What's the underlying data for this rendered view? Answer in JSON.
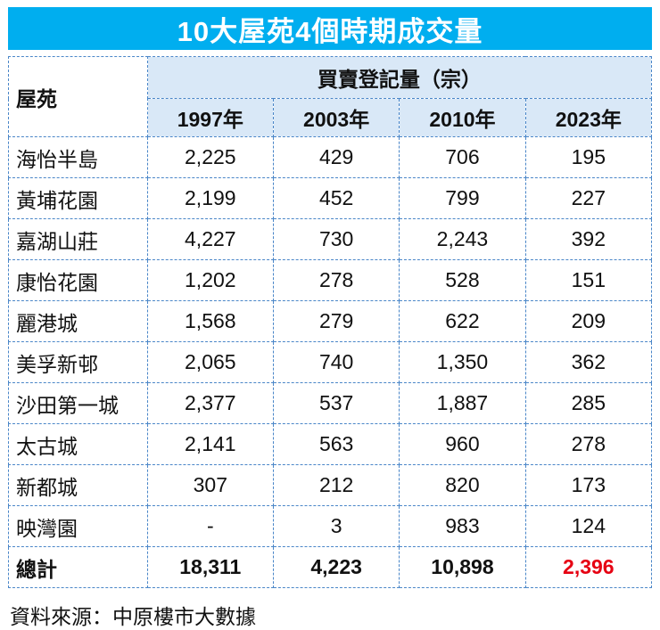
{
  "title": "10大屋苑4個時期成交量",
  "footer": "資料來源：中原樓市大數據",
  "colors": {
    "title_bg": "#00aeef",
    "header_bg": "#d9e8f7",
    "border": "#4a86c8",
    "highlight": "#e60012"
  },
  "chart_data": {
    "type": "table",
    "title": "10大屋苑4個時期成交量",
    "corner_header": "屋苑",
    "group_header": "買賣登記量（宗）",
    "year_columns": [
      "1997年",
      "2003年",
      "2010年",
      "2023年"
    ],
    "rows": [
      {
        "estate": "海怡半島",
        "values": [
          "2,225",
          "429",
          "706",
          "195"
        ]
      },
      {
        "estate": "黃埔花園",
        "values": [
          "2,199",
          "452",
          "799",
          "227"
        ]
      },
      {
        "estate": "嘉湖山莊",
        "values": [
          "4,227",
          "730",
          "2,243",
          "392"
        ]
      },
      {
        "estate": "康怡花園",
        "values": [
          "1,202",
          "278",
          "528",
          "151"
        ]
      },
      {
        "estate": "麗港城",
        "values": [
          "1,568",
          "279",
          "622",
          "209"
        ]
      },
      {
        "estate": "美孚新邨",
        "values": [
          "2,065",
          "740",
          "1,350",
          "362"
        ]
      },
      {
        "estate": "沙田第一城",
        "values": [
          "2,377",
          "537",
          "1,887",
          "285"
        ]
      },
      {
        "estate": "太古城",
        "values": [
          "2,141",
          "563",
          "960",
          "278"
        ]
      },
      {
        "estate": "新都城",
        "values": [
          "307",
          "212",
          "820",
          "173"
        ]
      },
      {
        "estate": "映灣園",
        "values": [
          "-",
          "3",
          "983",
          "124"
        ]
      }
    ],
    "total_row": {
      "estate": "總計",
      "values": [
        "18,311",
        "4,223",
        "10,898",
        "2,396"
      ],
      "highlight_last": true
    },
    "source": "資料來源：中原樓市大數據",
    "legend_position": "none",
    "grid": true
  }
}
